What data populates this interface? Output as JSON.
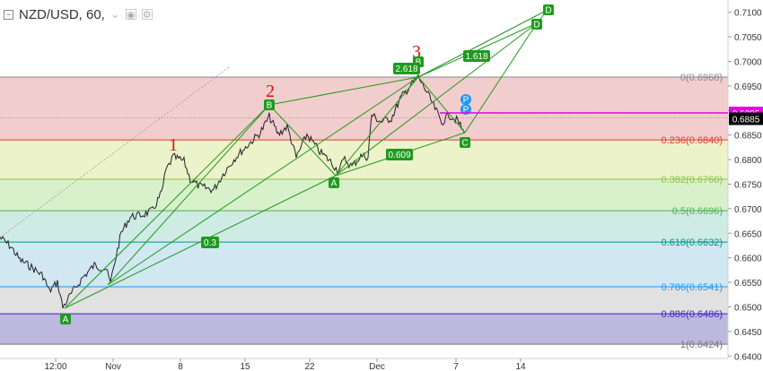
{
  "header": {
    "symbol": "NZD/USD, 60,"
  },
  "colors": {
    "wave": "#1e9b1e",
    "price": "#222222",
    "current_price_bg": "#000000",
    "target_price_bg": "#e600e6",
    "point_p": "#2196f3"
  },
  "chart_data": {
    "type": "line",
    "ylim": [
      0.6395,
      0.7125
    ],
    "y_ticks": [
      "0.7100",
      "0.7050",
      "0.7000",
      "0.6950",
      "0.6900",
      "0.6850",
      "0.6800",
      "0.6750",
      "0.6700",
      "0.6650",
      "0.6600",
      "0.6550",
      "0.6500",
      "0.6450",
      "0.6400"
    ],
    "x_ticks": [
      "12:00",
      "Nov",
      "8",
      "15",
      "22",
      "Dec",
      "7",
      "14"
    ],
    "price_labels": {
      "current": "0.6885",
      "target": "0.6895"
    },
    "fib_levels": [
      {
        "label": "0(0.6968)",
        "value": 0.6968,
        "color": "#888888",
        "fill": "#f0c4c4"
      },
      {
        "label": "0.236(0.6840)",
        "value": 0.684,
        "color": "#e53935",
        "fill": "#e9f0c0"
      },
      {
        "label": "0.382(0.6760)",
        "value": 0.676,
        "color": "#8bc34a",
        "fill": "#d2efc2"
      },
      {
        "label": "0.5(0.6696)",
        "value": 0.6696,
        "color": "#4caf50",
        "fill": "#c6e8df"
      },
      {
        "label": "0.618(0.6632)",
        "value": 0.6632,
        "color": "#009688",
        "fill": "#c9e3ef"
      },
      {
        "label": "0.786(0.6541)",
        "value": 0.6541,
        "color": "#2196f3",
        "fill": "#dcdcdc"
      },
      {
        "label": "0.886(0.6486)",
        "value": 0.6486,
        "color": "#3f1fcc",
        "fill": "#b0acd8"
      },
      {
        "label": "1(0.6424)",
        "value": 0.6424,
        "color": "#777777",
        "fill": "none"
      }
    ],
    "wave_labels": [
      "1",
      "2",
      "3"
    ],
    "pattern_points": [
      "A",
      "B",
      "A",
      "B",
      "C",
      "D",
      "D",
      "P",
      "P"
    ],
    "ratios": [
      "0.3",
      "0.609",
      "2.618",
      "1.618"
    ]
  }
}
